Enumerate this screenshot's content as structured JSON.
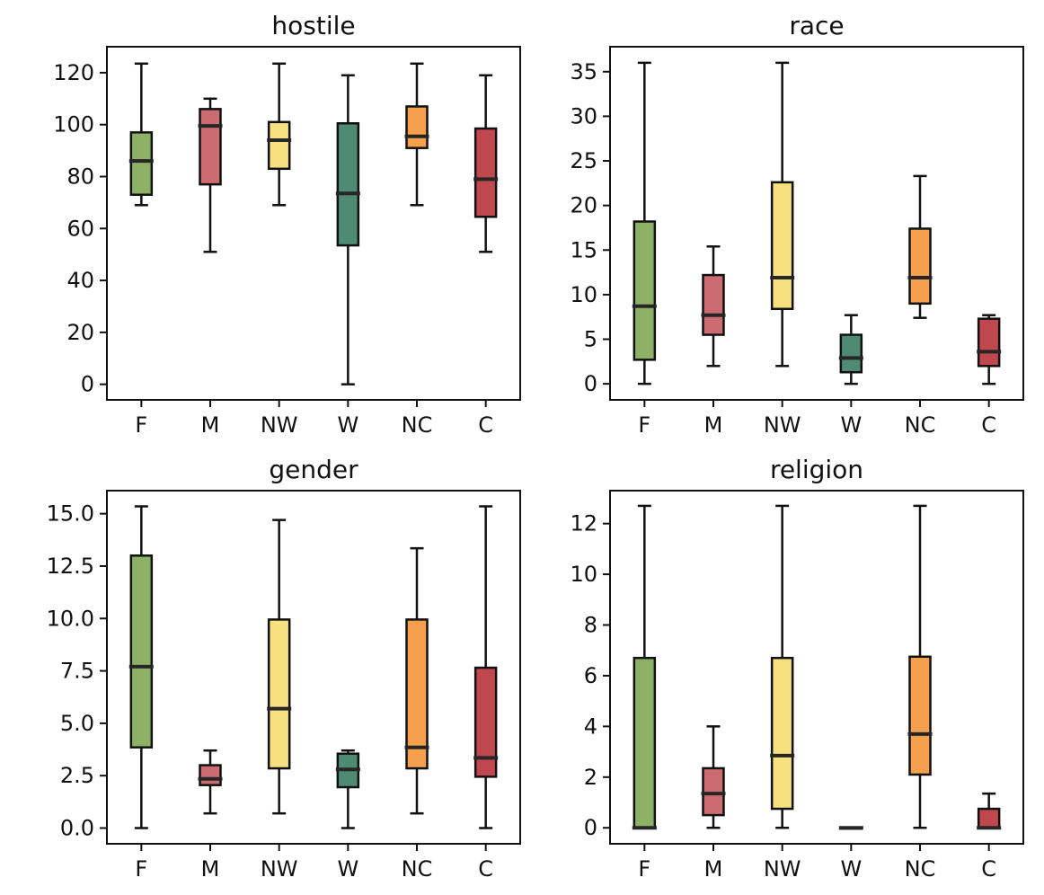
{
  "chart_data": [
    {
      "type": "box",
      "title": "hostile",
      "xlabel": "",
      "ylabel": "",
      "categories": [
        "F",
        "M",
        "NW",
        "W",
        "NC",
        "C"
      ],
      "colors": [
        "#8db266",
        "#cc6b70",
        "#f6e07f",
        "#4f8a74",
        "#f4a04e",
        "#c0474e"
      ],
      "ylim": [
        -6,
        130
      ],
      "yticks": [
        0,
        20,
        40,
        60,
        80,
        100,
        120
      ],
      "ytick_labels": [
        "0",
        "20",
        "40",
        "60",
        "80",
        "100",
        "120"
      ],
      "grid": false,
      "boxes": [
        {
          "whisker_low": 69,
          "q1": 73,
          "median": 86,
          "q3": 97,
          "whisker_high": 123.5
        },
        {
          "whisker_low": 51,
          "q1": 77,
          "median": 99.5,
          "q3": 106,
          "whisker_high": 110
        },
        {
          "whisker_low": 69,
          "q1": 83,
          "median": 94,
          "q3": 101,
          "whisker_high": 123.5
        },
        {
          "whisker_low": 0,
          "q1": 53.5,
          "median": 73.5,
          "q3": 100.5,
          "whisker_high": 119
        },
        {
          "whisker_low": 69,
          "q1": 91,
          "median": 95.5,
          "q3": 107,
          "whisker_high": 123.5
        },
        {
          "whisker_low": 51,
          "q1": 64.5,
          "median": 79,
          "q3": 98.5,
          "whisker_high": 119
        }
      ]
    },
    {
      "type": "box",
      "title": "race",
      "xlabel": "",
      "ylabel": "",
      "categories": [
        "F",
        "M",
        "NW",
        "W",
        "NC",
        "C"
      ],
      "colors": [
        "#8db266",
        "#cc6b70",
        "#f6e07f",
        "#4f8a74",
        "#f4a04e",
        "#c0474e"
      ],
      "ylim": [
        -1.8,
        37.8
      ],
      "yticks": [
        0,
        5,
        10,
        15,
        20,
        25,
        30,
        35
      ],
      "ytick_labels": [
        "0",
        "5",
        "10",
        "15",
        "20",
        "25",
        "30",
        "35"
      ],
      "grid": false,
      "boxes": [
        {
          "whisker_low": 0,
          "q1": 2.7,
          "median": 8.7,
          "q3": 18.2,
          "whisker_high": 36
        },
        {
          "whisker_low": 2,
          "q1": 5.5,
          "median": 7.7,
          "q3": 12.2,
          "whisker_high": 15.4
        },
        {
          "whisker_low": 2,
          "q1": 8.4,
          "median": 11.9,
          "q3": 22.6,
          "whisker_high": 36
        },
        {
          "whisker_low": 0,
          "q1": 1.3,
          "median": 2.9,
          "q3": 5.5,
          "whisker_high": 7.7
        },
        {
          "whisker_low": 7.4,
          "q1": 9,
          "median": 11.9,
          "q3": 17.4,
          "whisker_high": 23.3
        },
        {
          "whisker_low": 0,
          "q1": 2,
          "median": 3.6,
          "q3": 7.3,
          "whisker_high": 7.7
        }
      ]
    },
    {
      "type": "box",
      "title": "gender",
      "xlabel": "",
      "ylabel": "",
      "categories": [
        "F",
        "M",
        "NW",
        "W",
        "NC",
        "C"
      ],
      "colors": [
        "#8db266",
        "#cc6b70",
        "#f6e07f",
        "#4f8a74",
        "#f4a04e",
        "#c0474e"
      ],
      "ylim": [
        -0.75,
        16.1
      ],
      "yticks": [
        0,
        2.5,
        5,
        7.5,
        10,
        12.5,
        15
      ],
      "ytick_labels": [
        "0.0",
        "2.5",
        "5.0",
        "7.5",
        "10.0",
        "12.5",
        "15.0"
      ],
      "grid": false,
      "boxes": [
        {
          "whisker_low": 0,
          "q1": 3.85,
          "median": 7.7,
          "q3": 13,
          "whisker_high": 15.35
        },
        {
          "whisker_low": 0.7,
          "q1": 2.05,
          "median": 2.35,
          "q3": 3,
          "whisker_high": 3.7
        },
        {
          "whisker_low": 0.7,
          "q1": 2.85,
          "median": 5.7,
          "q3": 9.95,
          "whisker_high": 14.7
        },
        {
          "whisker_low": 0,
          "q1": 1.95,
          "median": 2.8,
          "q3": 3.55,
          "whisker_high": 3.7
        },
        {
          "whisker_low": 0.7,
          "q1": 2.85,
          "median": 3.85,
          "q3": 9.95,
          "whisker_high": 13.35
        },
        {
          "whisker_low": 0,
          "q1": 2.45,
          "median": 3.35,
          "q3": 7.65,
          "whisker_high": 15.35
        }
      ]
    },
    {
      "type": "box",
      "title": "religion",
      "xlabel": "",
      "ylabel": "",
      "categories": [
        "F",
        "M",
        "NW",
        "W",
        "NC",
        "C"
      ],
      "colors": [
        "#8db266",
        "#cc6b70",
        "#f6e07f",
        "#4f8a74",
        "#f4a04e",
        "#c0474e"
      ],
      "ylim": [
        -0.63,
        13.3
      ],
      "yticks": [
        0,
        2,
        4,
        6,
        8,
        10,
        12
      ],
      "ytick_labels": [
        "0",
        "2",
        "4",
        "6",
        "8",
        "10",
        "12"
      ],
      "grid": false,
      "boxes": [
        {
          "whisker_low": 0,
          "q1": 0,
          "median": 0,
          "q3": 6.7,
          "whisker_high": 12.7
        },
        {
          "whisker_low": 0,
          "q1": 0.5,
          "median": 1.35,
          "q3": 2.35,
          "whisker_high": 4
        },
        {
          "whisker_low": 0,
          "q1": 0.75,
          "median": 2.85,
          "q3": 6.7,
          "whisker_high": 12.7
        },
        {
          "whisker_low": 0,
          "q1": 0,
          "median": 0,
          "q3": 0,
          "whisker_high": 0
        },
        {
          "whisker_low": 0,
          "q1": 2.1,
          "median": 3.7,
          "q3": 6.75,
          "whisker_high": 12.7
        },
        {
          "whisker_low": 0,
          "q1": 0,
          "median": 0,
          "q3": 0.75,
          "whisker_high": 1.35
        }
      ]
    }
  ]
}
